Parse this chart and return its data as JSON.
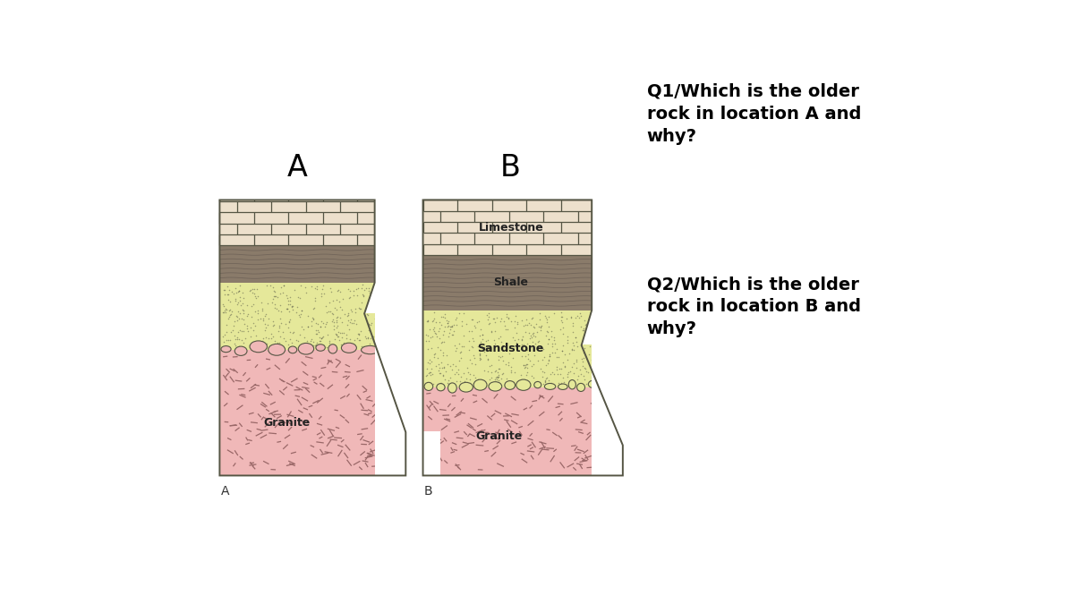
{
  "bg_color": "#ffffff",
  "title_A": "A",
  "title_B": "B",
  "label_A_bottom": "A",
  "label_B_bottom": "B",
  "q1_text": "Q1/Which is the older\nrock in location A and\nwhy?",
  "q2_text": "Q2/Which is the older\nrock in location B and\nwhy?",
  "colors": {
    "limestone": "#ede0cc",
    "shale": "#8a7b6a",
    "sandstone": "#e5e89a",
    "granite": "#f0b8b8",
    "border": "#555544",
    "granite_marks": "#9a6868",
    "shale_pattern": "#6b5f55",
    "boulder_fill": "#e8c8c0"
  },
  "font_size_labels": 9,
  "font_size_questions": 14,
  "font_size_titles": 24,
  "font_size_bottom": 10
}
